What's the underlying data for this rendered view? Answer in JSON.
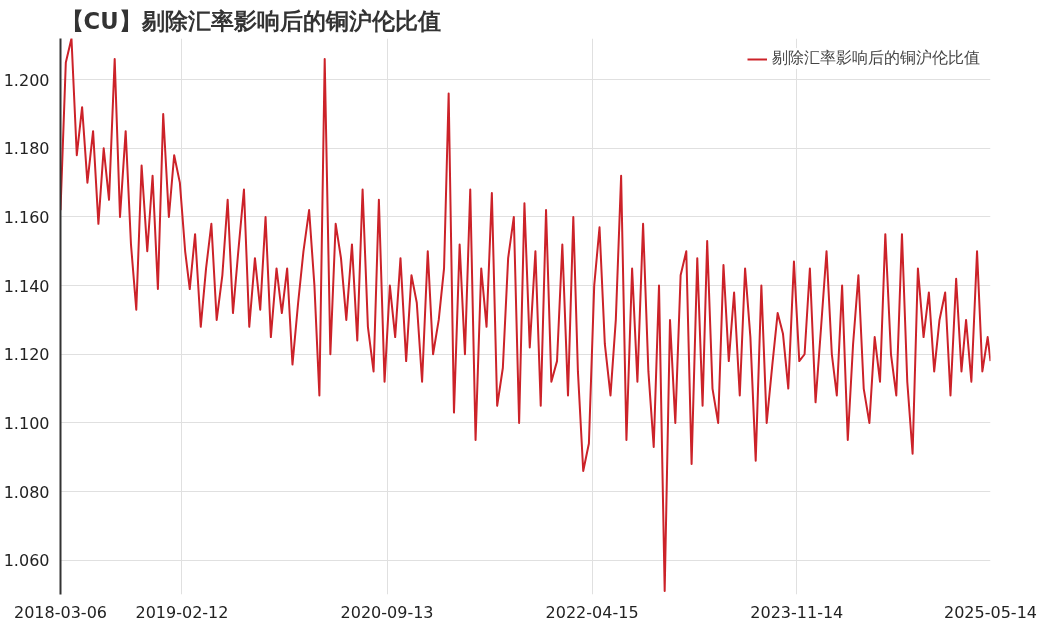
{
  "chart_data": {
    "type": "line",
    "title": "【CU】剔除汇率影响后的铜沪伦比值",
    "x": [
      "2018-03-06",
      "2018-03-21",
      "2018-04-06",
      "2018-04-21",
      "2018-05-06",
      "2018-05-21",
      "2018-06-06",
      "2018-06-21",
      "2018-07-06",
      "2018-07-21",
      "2018-08-06",
      "2018-08-21",
      "2018-09-06",
      "2018-09-21",
      "2018-10-06",
      "2018-10-21",
      "2018-11-06",
      "2018-11-21",
      "2018-12-06",
      "2018-12-21",
      "2019-01-06",
      "2019-01-21",
      "2019-02-06",
      "2019-02-21",
      "2019-03-06",
      "2019-03-21",
      "2019-04-06",
      "2019-04-21",
      "2019-05-06",
      "2019-05-21",
      "2019-06-06",
      "2019-06-21",
      "2019-07-06",
      "2019-07-21",
      "2019-08-06",
      "2019-08-21",
      "2019-09-06",
      "2019-09-21",
      "2019-10-06",
      "2019-10-21",
      "2019-11-06",
      "2019-11-21",
      "2019-12-06",
      "2019-12-21",
      "2020-01-06",
      "2020-01-21",
      "2020-02-06",
      "2020-02-21",
      "2020-03-06",
      "2020-03-21",
      "2020-04-06",
      "2020-04-21",
      "2020-05-06",
      "2020-05-21",
      "2020-06-06",
      "2020-06-21",
      "2020-07-06",
      "2020-07-21",
      "2020-08-06",
      "2020-08-21",
      "2020-09-06",
      "2020-09-21",
      "2020-10-06",
      "2020-10-21",
      "2020-11-06",
      "2020-11-21",
      "2020-12-06",
      "2020-12-21",
      "2021-01-06",
      "2021-01-21",
      "2021-02-06",
      "2021-02-21",
      "2021-03-06",
      "2021-03-21",
      "2021-04-06",
      "2021-04-21",
      "2021-05-06",
      "2021-05-21",
      "2021-06-06",
      "2021-06-21",
      "2021-07-06",
      "2021-07-21",
      "2021-08-06",
      "2021-08-21",
      "2021-09-06",
      "2021-09-21",
      "2021-10-06",
      "2021-10-21",
      "2021-11-06",
      "2021-11-21",
      "2021-12-06",
      "2021-12-21",
      "2022-01-06",
      "2022-01-21",
      "2022-02-06",
      "2022-02-21",
      "2022-03-06",
      "2022-03-21",
      "2022-04-06",
      "2022-04-21",
      "2022-05-06",
      "2022-05-21",
      "2022-06-06",
      "2022-06-21",
      "2022-07-06",
      "2022-07-21",
      "2022-08-06",
      "2022-08-21",
      "2022-09-06",
      "2022-09-21",
      "2022-10-06",
      "2022-10-21",
      "2022-11-06",
      "2022-11-21",
      "2022-12-06",
      "2022-12-21",
      "2023-01-06",
      "2023-01-21",
      "2023-02-06",
      "2023-02-21",
      "2023-03-06",
      "2023-03-21",
      "2023-04-06",
      "2023-04-21",
      "2023-05-06",
      "2023-05-21",
      "2023-06-06",
      "2023-06-21",
      "2023-07-06",
      "2023-07-21",
      "2023-08-06",
      "2023-08-21",
      "2023-09-06",
      "2023-09-21",
      "2023-10-06",
      "2023-10-21",
      "2023-11-06",
      "2023-11-21",
      "2023-12-06",
      "2023-12-21",
      "2024-01-06",
      "2024-01-21",
      "2024-02-06",
      "2024-02-21",
      "2024-03-06",
      "2024-03-21",
      "2024-04-06",
      "2024-04-21",
      "2024-05-06",
      "2024-05-21",
      "2024-06-06",
      "2024-06-21",
      "2024-07-06",
      "2024-07-21",
      "2024-08-06",
      "2024-08-21",
      "2024-09-06",
      "2024-09-21",
      "2024-10-06",
      "2024-10-21",
      "2024-11-06",
      "2024-11-21",
      "2024-12-06",
      "2024-12-21",
      "2025-01-06",
      "2025-01-21",
      "2025-02-06",
      "2025-02-21",
      "2025-03-06",
      "2025-03-21",
      "2025-04-06",
      "2025-04-21",
      "2025-05-06",
      "2025-05-14"
    ],
    "series": [
      {
        "name": "剔除汇率影响后的铜沪伦比值",
        "color": "#cc2229",
        "values": [
          1.162,
          1.205,
          1.212,
          1.178,
          1.192,
          1.17,
          1.185,
          1.158,
          1.18,
          1.165,
          1.206,
          1.16,
          1.185,
          1.152,
          1.133,
          1.175,
          1.15,
          1.172,
          1.139,
          1.19,
          1.16,
          1.178,
          1.17,
          1.15,
          1.139,
          1.155,
          1.128,
          1.145,
          1.158,
          1.13,
          1.143,
          1.165,
          1.132,
          1.15,
          1.168,
          1.128,
          1.148,
          1.133,
          1.16,
          1.125,
          1.145,
          1.132,
          1.145,
          1.117,
          1.135,
          1.15,
          1.162,
          1.14,
          1.108,
          1.206,
          1.12,
          1.158,
          1.148,
          1.13,
          1.152,
          1.124,
          1.168,
          1.128,
          1.115,
          1.165,
          1.112,
          1.14,
          1.125,
          1.148,
          1.118,
          1.143,
          1.135,
          1.112,
          1.15,
          1.12,
          1.13,
          1.145,
          1.196,
          1.103,
          1.152,
          1.12,
          1.168,
          1.095,
          1.145,
          1.128,
          1.167,
          1.105,
          1.116,
          1.148,
          1.16,
          1.1,
          1.164,
          1.122,
          1.15,
          1.105,
          1.162,
          1.112,
          1.118,
          1.152,
          1.108,
          1.16,
          1.115,
          1.086,
          1.094,
          1.14,
          1.157,
          1.123,
          1.108,
          1.13,
          1.172,
          1.095,
          1.145,
          1.112,
          1.158,
          1.115,
          1.093,
          1.14,
          1.051,
          1.13,
          1.1,
          1.143,
          1.15,
          1.088,
          1.148,
          1.105,
          1.153,
          1.11,
          1.1,
          1.146,
          1.118,
          1.138,
          1.108,
          1.145,
          1.125,
          1.089,
          1.14,
          1.1,
          1.117,
          1.132,
          1.126,
          1.11,
          1.147,
          1.118,
          1.12,
          1.145,
          1.106,
          1.127,
          1.15,
          1.12,
          1.108,
          1.14,
          1.095,
          1.123,
          1.143,
          1.11,
          1.1,
          1.125,
          1.112,
          1.155,
          1.12,
          1.108,
          1.155,
          1.112,
          1.091,
          1.145,
          1.125,
          1.138,
          1.115,
          1.13,
          1.138,
          1.108,
          1.142,
          1.115,
          1.13,
          1.112,
          1.15,
          1.115,
          1.125,
          1.118
        ]
      }
    ],
    "xlim": [
      "2018-03-06",
      "2025-05-14"
    ],
    "xticks": [
      "2018-03-06",
      "2019-02-12",
      "2020-09-13",
      "2022-04-15",
      "2023-11-14",
      "2025-05-14"
    ],
    "ylim": [
      1.05,
      1.212
    ],
    "yticks": [
      {
        "value": 1.06,
        "label": "1.060"
      },
      {
        "value": 1.08,
        "label": "1.080"
      },
      {
        "value": 1.1,
        "label": "1.100"
      },
      {
        "value": 1.12,
        "label": "1.120"
      },
      {
        "value": 1.14,
        "label": "1.140"
      },
      {
        "value": 1.16,
        "label": "1.160"
      },
      {
        "value": 1.18,
        "label": "1.180"
      },
      {
        "value": 1.2,
        "label": "1.200"
      }
    ],
    "grid": true,
    "legend": "top right",
    "line_style": "solid",
    "marker": "none"
  }
}
